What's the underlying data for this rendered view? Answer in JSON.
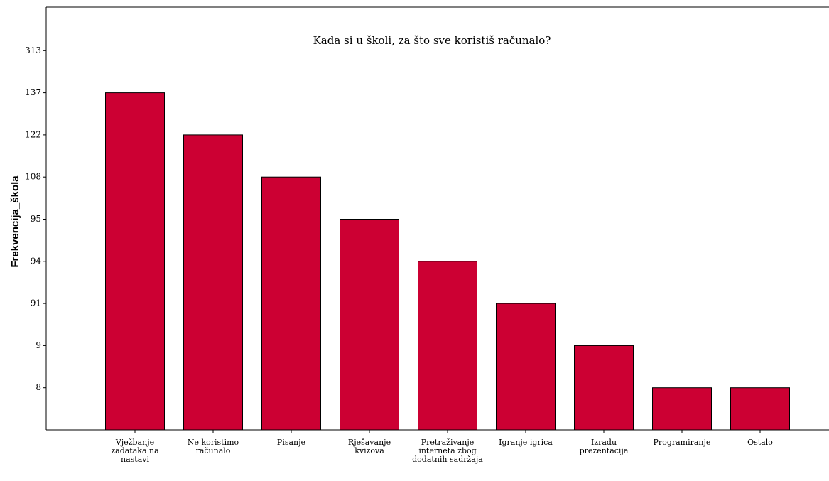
{
  "chart_data": {
    "type": "bar",
    "title": "Kada si u školi, za što sve koristiš računalo?",
    "ylabel": "Frekvencija_škola",
    "categories": [
      "Vježbanje zadataka na nastavi",
      "Ne koristimo računalo",
      "Pisanje",
      "Rješavanje kvizova",
      "Pretraživanje interneta zbog dodatnih sadržaja",
      "Igranje igrica",
      "Izradu prezentacija",
      "Programiranje",
      "Ostalo"
    ],
    "values": [
      137,
      122,
      108,
      95,
      94,
      91,
      9,
      8,
      8
    ],
    "color": "#cc0033",
    "yscale": "ordinal",
    "yticks": [
      8,
      9,
      91,
      94,
      95,
      108,
      122,
      137,
      313
    ]
  }
}
